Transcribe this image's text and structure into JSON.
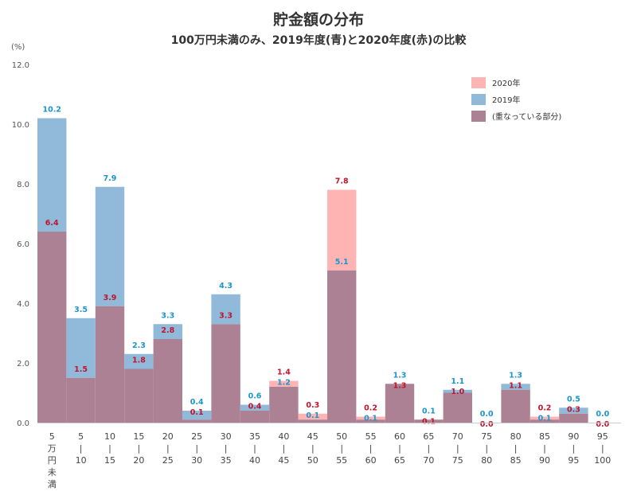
{
  "chart_data": {
    "type": "bar",
    "title": "貯金額の分布",
    "subtitle": "100万円未満のみ、2019年度(青)と2020年度(赤)の比較",
    "ylabel": "(%)",
    "ylim": [
      0,
      12
    ],
    "yticks": [
      "0.0",
      "2.0",
      "4.0",
      "6.0",
      "8.0",
      "10.0",
      "12.0"
    ],
    "categories": [
      [
        "5",
        "万",
        "円",
        "未",
        "満"
      ],
      [
        "5",
        "|",
        "10"
      ],
      [
        "10",
        "|",
        "15"
      ],
      [
        "15",
        "|",
        "20"
      ],
      [
        "20",
        "|",
        "25"
      ],
      [
        "25",
        "|",
        "30"
      ],
      [
        "30",
        "|",
        "35"
      ],
      [
        "35",
        "|",
        "40"
      ],
      [
        "40",
        "|",
        "45"
      ],
      [
        "45",
        "|",
        "50"
      ],
      [
        "50",
        "|",
        "55"
      ],
      [
        "55",
        "|",
        "60"
      ],
      [
        "60",
        "|",
        "65"
      ],
      [
        "65",
        "|",
        "70"
      ],
      [
        "70",
        "|",
        "75"
      ],
      [
        "75",
        "|",
        "80"
      ],
      [
        "80",
        "|",
        "85"
      ],
      [
        "85",
        "|",
        "90"
      ],
      [
        "90",
        "|",
        "95"
      ],
      [
        "95",
        "|",
        "100"
      ]
    ],
    "series": [
      {
        "name": "2020年",
        "color": "#ffb4b4",
        "label_color": "#c0142c",
        "values": [
          6.4,
          1.5,
          3.9,
          1.8,
          2.8,
          0.1,
          3.3,
          0.4,
          1.4,
          0.3,
          7.8,
          0.2,
          1.3,
          0.1,
          1.0,
          0.0,
          1.1,
          0.2,
          0.3,
          0.0
        ]
      },
      {
        "name": "2019年",
        "color": "#90b9da",
        "label_color": "#1a96cc",
        "values": [
          10.2,
          3.5,
          7.9,
          2.3,
          3.3,
          0.4,
          4.3,
          0.6,
          1.2,
          0.1,
          5.1,
          0.1,
          1.3,
          0.1,
          1.1,
          0.0,
          1.3,
          0.1,
          0.5,
          0.0
        ]
      }
    ],
    "overlap": {
      "name": "(重なっている部分)",
      "color": "#ad8194"
    },
    "legend": "top-right",
    "grid": false
  }
}
